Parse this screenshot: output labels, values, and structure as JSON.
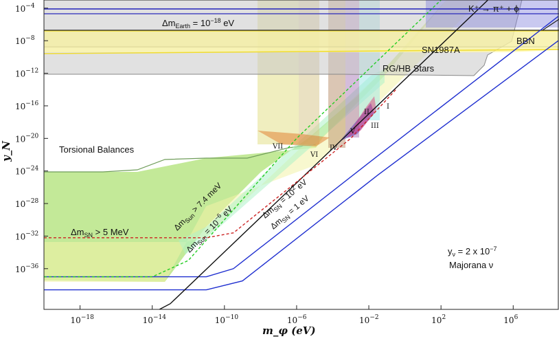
{
  "chart_data": {
    "type": "area",
    "xlabel": "m_φ (eV)",
    "ylabel": "y_N",
    "x_log_range": [
      -20,
      8.5
    ],
    "y_log_range": [
      -41,
      -3
    ],
    "x_ticks": [
      {
        "exp": -18,
        "label": "10",
        "sup": "−18"
      },
      {
        "exp": -14,
        "label": "10",
        "sup": "−14"
      },
      {
        "exp": -10,
        "label": "10",
        "sup": "−10"
      },
      {
        "exp": -6,
        "label": "10",
        "sup": "−6"
      },
      {
        "exp": -2,
        "label": "10",
        "sup": "−2"
      },
      {
        "exp": 2,
        "label": "10",
        "sup": "2"
      },
      {
        "exp": 6,
        "label": "10",
        "sup": "6"
      }
    ],
    "y_ticks": [
      {
        "exp": -4,
        "label": "10",
        "sup": "−4"
      },
      {
        "exp": -8,
        "label": "10",
        "sup": "−8"
      },
      {
        "exp": -12,
        "label": "10",
        "sup": "−12"
      },
      {
        "exp": -16,
        "label": "10",
        "sup": "−16"
      },
      {
        "exp": -20,
        "label": "10",
        "sup": "−20"
      },
      {
        "exp": -24,
        "label": "10",
        "sup": "−24"
      },
      {
        "exp": -28,
        "label": "10",
        "sup": "−28"
      },
      {
        "exp": -32,
        "label": "10",
        "sup": "−32"
      },
      {
        "exp": -36,
        "label": "10",
        "sup": "−36"
      }
    ],
    "lines": [
      {
        "name": "Δm_SN = 1 eV",
        "color": "#1f2fd0",
        "points": [
          [
            -20,
            -38.6
          ],
          [
            -11,
            -38.6
          ],
          [
            -9,
            -37.5
          ],
          [
            -1.5,
            -24.5
          ],
          [
            8.5,
            -8
          ]
        ]
      },
      {
        "name": "Δm_SN = 10^2 eV",
        "color": "#1f2fd0",
        "points": [
          [
            -20,
            -37
          ],
          [
            -11,
            -37
          ],
          [
            -9.5,
            -36
          ],
          [
            -2,
            -23
          ],
          [
            8.5,
            -5
          ]
        ]
      },
      {
        "name": "Δm_Sun = 10^-6 eV",
        "color": "#111111",
        "points": [
          [
            -13.6,
            -41
          ],
          [
            -13,
            -40.3
          ],
          [
            4.6,
            -3
          ]
        ]
      },
      {
        "name": "Δm_Sun > 7.4 meV",
        "color": "#22cc22",
        "points": [
          [
            -20,
            -37
          ],
          [
            -14,
            -37
          ],
          [
            -12,
            -35
          ],
          [
            -6,
            -20
          ],
          [
            2,
            -3
          ]
        ]
      },
      {
        "name": "Δm_SN > 5 MeV",
        "color": "#cc2222",
        "points": [
          [
            -20,
            -32.2
          ],
          [
            -11,
            -32.2
          ],
          [
            -9.5,
            -31.6
          ],
          [
            -3,
            -20
          ],
          [
            -0.5,
            -14
          ]
        ]
      },
      {
        "name": "Δm_Earth = 10^-18 eV",
        "color": "#2222bb",
        "points": [
          [
            -20,
            -4.1
          ],
          [
            8.5,
            -4.1
          ]
        ]
      }
    ],
    "regions": [
      {
        "name": "Torsional Balances",
        "color": "#a6e07a",
        "opacity": 0.7
      },
      {
        "name": "BBN",
        "color": "#fff6a0",
        "opacity": 0.8
      },
      {
        "name": "SN1987A",
        "color": "#c9c9c9",
        "opacity": 0.6
      },
      {
        "name": "RG/HB Stars",
        "color": "#b5b5b5",
        "opacity": 0.55
      },
      {
        "name": "K+ → π+ + φ",
        "color": "#8888dd",
        "opacity": 0.6
      }
    ],
    "annotations": {
      "torsional": "Torsional Balances",
      "bbn": "BBN",
      "sn1987a": "SN1987A",
      "rghb": "RG/HB Stars",
      "kaon": "K⁺ → π⁺ + ϕ",
      "earth": "Δm",
      "earth_sub": "Earth",
      "earth_eq": " = 10",
      "earth_sup": "−18",
      "earth_unit": " eV",
      "sn5": "Δm",
      "sn5_sub": "SN",
      "sn5_rest": " > 5 MeV",
      "sun74": "Δm",
      "sun74_sub": "Sun",
      "sun74_rest": " > 7.4 meV",
      "sun6": "Δm",
      "sun6_sub": "Sun",
      "sun6_eq": " = 10",
      "sun6_sup": "−6",
      "sun6_unit": " eV",
      "sn2": "Δm",
      "sn2_sub": "SN",
      "sn2_eq": " = 10",
      "sn2_sup": "2",
      "sn2_unit": " eV",
      "sn1": "Δm",
      "sn1_sub": "SN",
      "sn1_rest": " = 1 eV",
      "yv": "y",
      "yv_sub": "ν",
      "yv_rest": " = 2 x 10",
      "yv_sup": "−7",
      "majorana": "Majorana ν",
      "roman": [
        "I",
        "II",
        "III",
        "IV",
        "V",
        "VI",
        "VII"
      ]
    }
  }
}
